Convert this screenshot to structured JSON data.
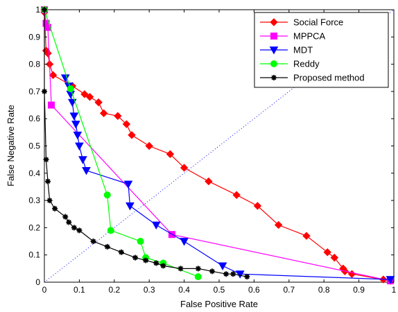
{
  "chart_data": {
    "type": "line",
    "xlabel": "False Positive Rate",
    "ylabel": "False Negative Rate",
    "xlim": [
      0,
      1
    ],
    "ylim": [
      0,
      1
    ],
    "xticks": [
      "0",
      "0.1",
      "0.2",
      "0.3",
      "0.4",
      "0.5",
      "0.6",
      "0.7",
      "0.8",
      "0.9",
      "1"
    ],
    "yticks": [
      "0",
      "0.1",
      "0.2",
      "0.3",
      "0.4",
      "0.5",
      "0.6",
      "0.7",
      "0.8",
      "0.9",
      "1"
    ],
    "legend_position": "top-right",
    "reference_line": {
      "style": "dotted",
      "color": "#0000ff",
      "from": [
        0,
        0
      ],
      "to": [
        1,
        1
      ]
    },
    "series": [
      {
        "name": "Social Force",
        "color": "#ff0000",
        "marker": "diamond",
        "x": [
          0.0,
          0.0,
          0.005,
          0.01,
          0.015,
          0.025,
          0.08,
          0.115,
          0.13,
          0.155,
          0.17,
          0.21,
          0.235,
          0.25,
          0.3,
          0.36,
          0.4,
          0.47,
          0.55,
          0.61,
          0.67,
          0.75,
          0.81,
          0.83,
          0.855,
          0.86,
          0.88,
          0.97,
          0.99
        ],
        "y": [
          1.0,
          0.99,
          0.85,
          0.84,
          0.8,
          0.76,
          0.72,
          0.69,
          0.68,
          0.66,
          0.62,
          0.61,
          0.58,
          0.54,
          0.5,
          0.47,
          0.42,
          0.37,
          0.32,
          0.28,
          0.21,
          0.17,
          0.11,
          0.09,
          0.05,
          0.04,
          0.03,
          0.01,
          0.005
        ]
      },
      {
        "name": "MPPCA",
        "color": "#ff00ff",
        "marker": "square",
        "x": [
          0.0,
          0.005,
          0.01,
          0.02,
          0.365,
          0.99
        ],
        "y": [
          1.0,
          0.95,
          0.935,
          0.65,
          0.175,
          0.005
        ]
      },
      {
        "name": "MDT",
        "color": "#0000ff",
        "marker": "triangle-down",
        "x": [
          0.06,
          0.07,
          0.075,
          0.08,
          0.085,
          0.09,
          0.095,
          0.1,
          0.11,
          0.12,
          0.24,
          0.245,
          0.32,
          0.4,
          0.51,
          0.56,
          0.99
        ],
        "y": [
          0.75,
          0.72,
          0.69,
          0.66,
          0.61,
          0.58,
          0.54,
          0.5,
          0.45,
          0.41,
          0.36,
          0.28,
          0.21,
          0.15,
          0.06,
          0.03,
          0.01
        ]
      },
      {
        "name": "Reddy",
        "color": "#00ff00",
        "marker": "circle",
        "x": [
          0.0,
          0.075,
          0.18,
          0.19,
          0.275,
          0.29,
          0.34,
          0.44
        ],
        "y": [
          1.0,
          0.71,
          0.32,
          0.19,
          0.15,
          0.09,
          0.07,
          0.02
        ]
      },
      {
        "name": "Proposed method",
        "color": "#000000",
        "marker": "star",
        "x": [
          0.0,
          0.0,
          0.005,
          0.01,
          0.015,
          0.03,
          0.06,
          0.07,
          0.085,
          0.1,
          0.14,
          0.18,
          0.22,
          0.26,
          0.29,
          0.32,
          0.34,
          0.39,
          0.44,
          0.48,
          0.52,
          0.54,
          0.58
        ],
        "y": [
          1.0,
          0.7,
          0.45,
          0.37,
          0.3,
          0.27,
          0.24,
          0.22,
          0.2,
          0.19,
          0.15,
          0.13,
          0.11,
          0.09,
          0.08,
          0.07,
          0.06,
          0.05,
          0.05,
          0.04,
          0.03,
          0.03,
          0.02
        ]
      }
    ]
  }
}
